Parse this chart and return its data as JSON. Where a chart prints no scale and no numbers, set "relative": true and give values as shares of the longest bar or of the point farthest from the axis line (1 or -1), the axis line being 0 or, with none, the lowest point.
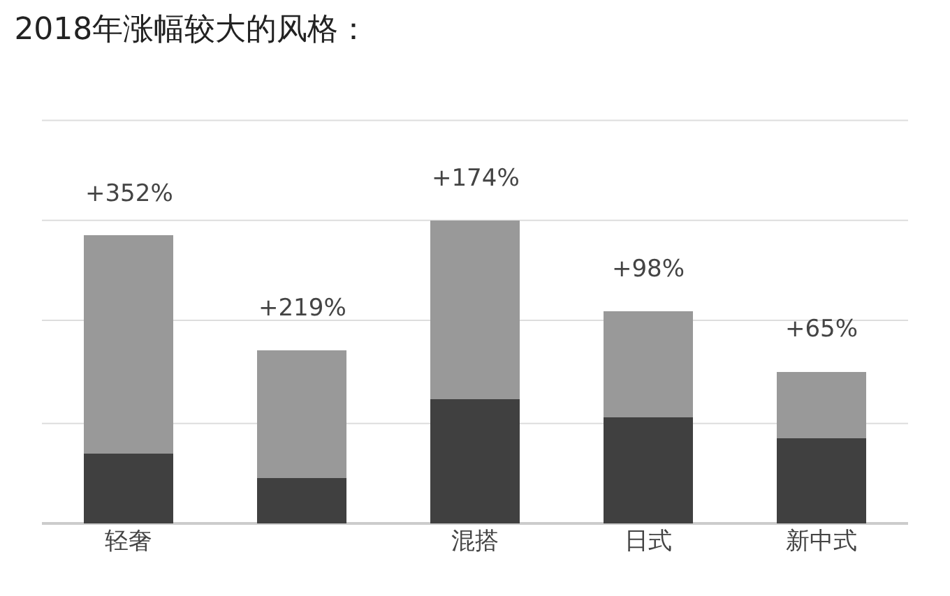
{
  "chart_data": {
    "type": "bar",
    "title": "2018年涨幅较大的风格：",
    "categories": [
      "轻奢",
      null,
      "混搭",
      "日式",
      "新中式"
    ],
    "relative": true,
    "stacked": true,
    "annotations": [
      "+352%",
      "+219%",
      "+174%",
      "+98%",
      "+65%"
    ],
    "ref_lines": [
      {
        "axis": "y",
        "value": 0.33,
        "color": "#dddddd"
      },
      {
        "axis": "y",
        "value": 0.67,
        "color": "#dddddd"
      },
      {
        "axis": "y",
        "value": 1.0,
        "color": "#dddddd"
      },
      {
        "axis": "y",
        "value": 1.33,
        "color": "#dddddd"
      }
    ],
    "series": [
      {
        "color": "#404040",
        "values": [
          0.23,
          0.15,
          0.41,
          0.35,
          0.28
        ]
      },
      {
        "color": "#999999",
        "values": [
          0.72,
          0.42,
          0.59,
          0.35,
          0.22
        ]
      }
    ]
  }
}
